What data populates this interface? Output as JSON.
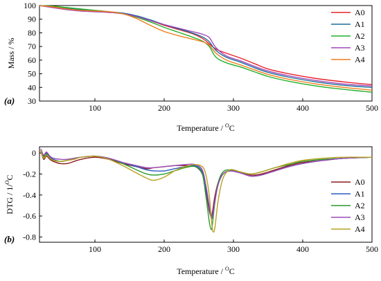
{
  "chart_data": [
    {
      "type": "line",
      "panel_label": "(a)",
      "xlabel_main": "Temperature / ",
      "xlabel_sup": "O",
      "xlabel_tail": "C",
      "ylabel": "Mass / %",
      "xlim": [
        20,
        500
      ],
      "ylim": [
        30,
        100
      ],
      "x_ticks": [
        100,
        200,
        300,
        400,
        500
      ],
      "y_ticks": [
        30,
        40,
        50,
        60,
        70,
        80,
        90,
        100
      ],
      "legend_position": "top-right",
      "x": [
        20,
        40,
        60,
        80,
        100,
        120,
        140,
        160,
        180,
        200,
        220,
        240,
        255,
        265,
        275,
        290,
        310,
        330,
        350,
        380,
        420,
        460,
        500
      ],
      "series": [
        {
          "name": "A0",
          "color": "#e8202a",
          "values": [
            100,
            98.5,
            97,
            96,
            95.5,
            95,
            94,
            92,
            89,
            85.5,
            82.5,
            79.5,
            76,
            72,
            68,
            65,
            61.5,
            57.5,
            53.5,
            50,
            46.5,
            44,
            42
          ]
        },
        {
          "name": "A1",
          "color": "#1a6f9a",
          "values": [
            100,
            99,
            98,
            97,
            96,
            95.5,
            94.5,
            92.5,
            89.5,
            86,
            83,
            80,
            77,
            73.5,
            67,
            62,
            58.5,
            54.5,
            51,
            47.5,
            44,
            41.5,
            40
          ]
        },
        {
          "name": "A2",
          "color": "#22b02a",
          "values": [
            100,
            99.5,
            98.5,
            97.5,
            96.5,
            95.5,
            94,
            91.5,
            88,
            84,
            80.5,
            77,
            74,
            70,
            62,
            58,
            55,
            51.5,
            48,
            44.5,
            41,
            38.5,
            36.5
          ]
        },
        {
          "name": "A3",
          "color": "#a046b8",
          "values": [
            100,
            98.5,
            97,
            96,
            95.5,
            95,
            94,
            92,
            89,
            86,
            83.5,
            81,
            79,
            76.5,
            69,
            63,
            59.5,
            55.5,
            52,
            48.5,
            45,
            42.5,
            41
          ]
        },
        {
          "name": "A4",
          "color": "#f07c1a",
          "values": [
            100,
            99,
            97.5,
            96.5,
            96,
            95.5,
            94,
            90.5,
            85.5,
            81,
            78,
            75.5,
            73.5,
            71,
            65,
            60,
            56.5,
            53,
            49.5,
            46,
            42.5,
            40,
            38
          ]
        }
      ]
    },
    {
      "type": "line",
      "panel_label": "(b)",
      "xlabel_main": "Temperature / ",
      "xlabel_sup": "O",
      "xlabel_tail": "C",
      "ylabel_main": "DTG / 1/",
      "ylabel_sup": "O",
      "ylabel_tail": "C",
      "xlim": [
        20,
        500
      ],
      "ylim": [
        -0.85,
        0.06
      ],
      "x_ticks": [
        100,
        200,
        300,
        400,
        500
      ],
      "y_ticks": [
        0,
        -0.2,
        -0.4,
        -0.6,
        -0.8
      ],
      "y_tick_labels": [
        "0",
        "-0.2",
        "-0.4",
        "-0.6",
        "-0.8"
      ],
      "legend_position": "right",
      "x": [
        22,
        26,
        30,
        35,
        40,
        50,
        60,
        70,
        80,
        100,
        120,
        140,
        160,
        175,
        185,
        200,
        215,
        230,
        245,
        255,
        260,
        265,
        268,
        270,
        273,
        278,
        285,
        295,
        310,
        325,
        340,
        360,
        380,
        400,
        430,
        460,
        500
      ],
      "series": [
        {
          "name": "A0",
          "color": "#8c1a1a",
          "values": [
            0.02,
            -0.06,
            -0.03,
            -0.06,
            -0.08,
            -0.1,
            -0.1,
            -0.08,
            -0.06,
            -0.04,
            -0.06,
            -0.1,
            -0.13,
            -0.15,
            -0.14,
            -0.13,
            -0.12,
            -0.12,
            -0.13,
            -0.2,
            -0.35,
            -0.55,
            -0.6,
            -0.55,
            -0.42,
            -0.28,
            -0.2,
            -0.17,
            -0.18,
            -0.21,
            -0.2,
            -0.16,
            -0.12,
            -0.09,
            -0.07,
            -0.05,
            -0.04
          ]
        },
        {
          "name": "A1",
          "color": "#2a5cc0",
          "values": [
            0.03,
            -0.03,
            0.0,
            -0.04,
            -0.06,
            -0.08,
            -0.07,
            -0.05,
            -0.04,
            -0.03,
            -0.05,
            -0.09,
            -0.13,
            -0.16,
            -0.17,
            -0.17,
            -0.15,
            -0.13,
            -0.12,
            -0.18,
            -0.33,
            -0.52,
            -0.62,
            -0.58,
            -0.46,
            -0.3,
            -0.2,
            -0.17,
            -0.19,
            -0.22,
            -0.21,
            -0.17,
            -0.13,
            -0.1,
            -0.07,
            -0.05,
            -0.04
          ]
        },
        {
          "name": "A2",
          "color": "#2a9a2a",
          "values": [
            0.03,
            -0.04,
            -0.01,
            -0.05,
            -0.07,
            -0.08,
            -0.07,
            -0.05,
            -0.04,
            -0.03,
            -0.05,
            -0.1,
            -0.16,
            -0.2,
            -0.21,
            -0.2,
            -0.17,
            -0.14,
            -0.13,
            -0.2,
            -0.4,
            -0.65,
            -0.73,
            -0.66,
            -0.48,
            -0.28,
            -0.18,
            -0.16,
            -0.18,
            -0.2,
            -0.18,
            -0.14,
            -0.11,
            -0.08,
            -0.06,
            -0.05,
            -0.04
          ]
        },
        {
          "name": "A3",
          "color": "#9a4ab8",
          "values": [
            0.04,
            -0.02,
            0.01,
            -0.03,
            -0.05,
            -0.06,
            -0.06,
            -0.05,
            -0.04,
            -0.03,
            -0.05,
            -0.09,
            -0.12,
            -0.14,
            -0.14,
            -0.13,
            -0.12,
            -0.11,
            -0.11,
            -0.16,
            -0.3,
            -0.5,
            -0.62,
            -0.6,
            -0.47,
            -0.3,
            -0.2,
            -0.17,
            -0.19,
            -0.22,
            -0.21,
            -0.17,
            -0.13,
            -0.1,
            -0.07,
            -0.05,
            -0.04
          ]
        },
        {
          "name": "A4",
          "color": "#b8a020",
          "values": [
            0.03,
            -0.05,
            -0.02,
            -0.05,
            -0.07,
            -0.08,
            -0.07,
            -0.06,
            -0.04,
            -0.03,
            -0.06,
            -0.12,
            -0.19,
            -0.24,
            -0.26,
            -0.23,
            -0.17,
            -0.13,
            -0.11,
            -0.13,
            -0.2,
            -0.4,
            -0.62,
            -0.74,
            -0.72,
            -0.45,
            -0.24,
            -0.16,
            -0.18,
            -0.2,
            -0.18,
            -0.14,
            -0.1,
            -0.07,
            -0.05,
            -0.04,
            -0.04
          ]
        }
      ]
    }
  ]
}
